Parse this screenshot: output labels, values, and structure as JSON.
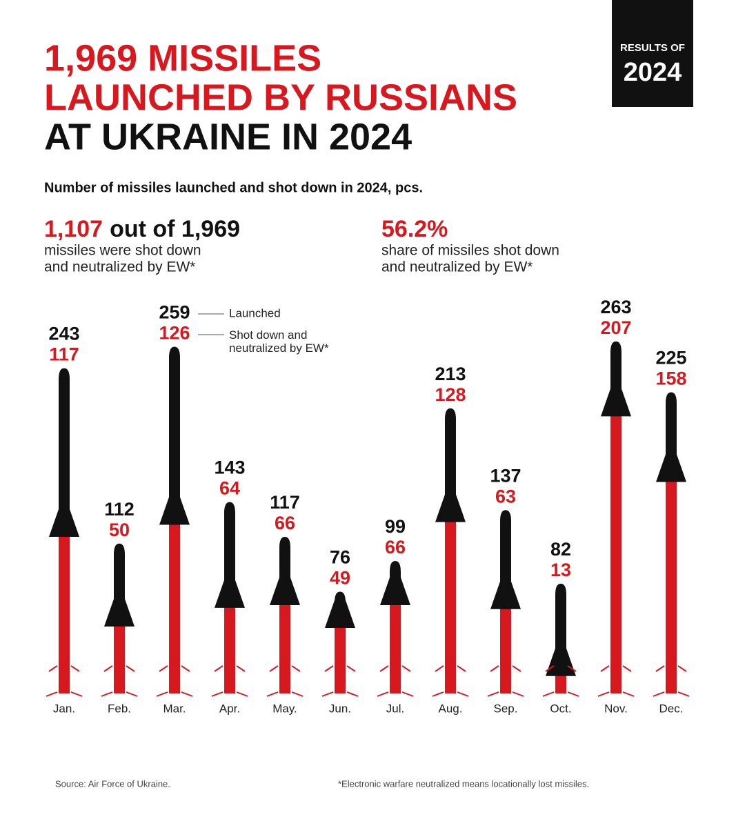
{
  "badge": {
    "top": "RESULTS OF",
    "year": "2024"
  },
  "title_lines": [
    "1,969 MISSILES",
    "LAUNCHED BY RUSSIANS",
    "AT UKRAINE IN 2024"
  ],
  "stats": [
    {
      "highlight": "1,107",
      "rest": "out of 1,969",
      "lines": [
        "missiles were shot down",
        "and neutralized by EW*"
      ]
    },
    {
      "highlight": "56.2%",
      "lines": [
        "share of missiles shot down",
        "and neutralized by EW*"
      ]
    }
  ],
  "chart_data": {
    "type": "bar",
    "subtitle": "Number of missiles launched and shot down in 2024, pcs.",
    "categories": [
      "Jan.",
      "Feb.",
      "Mar.",
      "Apr.",
      "May.",
      "Jun.",
      "Jul.",
      "Aug.",
      "Sep.",
      "Oct.",
      "Nov.",
      "Dec."
    ],
    "series": [
      {
        "name": "Launched",
        "color": "#111111",
        "values": [
          243,
          112,
          259,
          143,
          117,
          76,
          99,
          213,
          137,
          82,
          263,
          225
        ]
      },
      {
        "name": "Shot down and neutralized by EW*",
        "color": "#d7191f",
        "values": [
          117,
          50,
          126,
          64,
          66,
          49,
          66,
          128,
          63,
          13,
          207,
          158
        ]
      }
    ]
  },
  "footer": {
    "source": "Source: Air Force of Ukraine.",
    "note": "*Electronic warfare neutralized means locationally lost missiles."
  }
}
